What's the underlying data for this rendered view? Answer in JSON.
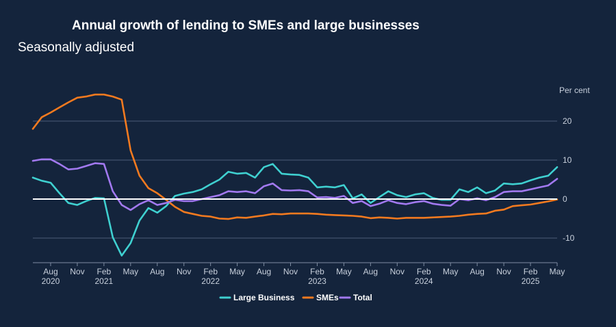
{
  "chart_data": {
    "type": "line",
    "title": "Annual growth of lending to SMEs and large businesses",
    "subtitle": "Seasonally adjusted",
    "ylabel": "Per cent",
    "xlabel": "",
    "ylim": [
      -16,
      27
    ],
    "yticks": [
      20,
      10,
      0,
      -10
    ],
    "grid": true,
    "legend_position": "bottom-center",
    "x_start": "2020-06",
    "x_end": "2025-05",
    "x_ticks": [
      {
        "month": "Aug",
        "year": "2020",
        "index": 2
      },
      {
        "month": "Nov",
        "year": "",
        "index": 5
      },
      {
        "month": "Feb",
        "year": "2021",
        "index": 8
      },
      {
        "month": "May",
        "year": "",
        "index": 11
      },
      {
        "month": "Aug",
        "year": "",
        "index": 14
      },
      {
        "month": "Nov",
        "year": "",
        "index": 17
      },
      {
        "month": "Feb",
        "year": "2022",
        "index": 20
      },
      {
        "month": "May",
        "year": "",
        "index": 23
      },
      {
        "month": "Aug",
        "year": "",
        "index": 26
      },
      {
        "month": "Nov",
        "year": "",
        "index": 29
      },
      {
        "month": "Feb",
        "year": "2023",
        "index": 32
      },
      {
        "month": "May",
        "year": "",
        "index": 35
      },
      {
        "month": "Aug",
        "year": "",
        "index": 38
      },
      {
        "month": "Nov",
        "year": "",
        "index": 41
      },
      {
        "month": "Feb",
        "year": "2024",
        "index": 44
      },
      {
        "month": "May",
        "year": "",
        "index": 47
      },
      {
        "month": "Aug",
        "year": "",
        "index": 50
      },
      {
        "month": "Nov",
        "year": "",
        "index": 53
      },
      {
        "month": "Feb",
        "year": "2025",
        "index": 56
      },
      {
        "month": "May",
        "year": "",
        "index": 59
      }
    ],
    "series": [
      {
        "name": "Large Business",
        "color": "#3fd0d0",
        "values": [
          5.5,
          4.7,
          4.2,
          1.5,
          -1.0,
          -1.5,
          -0.5,
          0.3,
          0.2,
          -9.8,
          -14.5,
          -11.3,
          -5.5,
          -2.3,
          -3.5,
          -1.8,
          0.8,
          1.4,
          1.8,
          2.5,
          3.8,
          5.0,
          7.0,
          6.5,
          6.7,
          5.5,
          8.2,
          9.0,
          6.5,
          6.3,
          6.2,
          5.5,
          3.0,
          3.2,
          3.0,
          3.6,
          0.2,
          1.2,
          -1.0,
          0.5,
          2.0,
          1.0,
          0.5,
          1.2,
          1.5,
          0.3,
          -0.2,
          -0.2,
          2.5,
          1.8,
          3.0,
          1.5,
          2.2,
          4.0,
          3.8,
          4.0,
          4.8,
          5.5,
          6.0,
          8.2
        ]
      },
      {
        "name": "SMEs",
        "color": "#f47a1f",
        "values": [
          18.0,
          21.0,
          22.2,
          23.5,
          24.8,
          26.0,
          26.3,
          26.8,
          26.8,
          26.3,
          25.5,
          12.5,
          6.0,
          2.8,
          1.5,
          -0.2,
          -2.0,
          -3.3,
          -3.8,
          -4.3,
          -4.5,
          -5.0,
          -5.1,
          -4.7,
          -4.8,
          -4.5,
          -4.2,
          -3.8,
          -3.9,
          -3.7,
          -3.7,
          -3.7,
          -3.8,
          -4.0,
          -4.1,
          -4.2,
          -4.3,
          -4.5,
          -4.9,
          -4.7,
          -4.8,
          -5.0,
          -4.8,
          -4.8,
          -4.8,
          -4.7,
          -4.6,
          -4.5,
          -4.3,
          -4.0,
          -3.8,
          -3.7,
          -3.0,
          -2.7,
          -1.8,
          -1.6,
          -1.4,
          -1.0,
          -0.6,
          -0.1
        ]
      },
      {
        "name": "Total",
        "color": "#a279f0",
        "values": [
          9.8,
          10.2,
          10.2,
          9.0,
          7.6,
          7.8,
          8.5,
          9.2,
          9.0,
          2.0,
          -1.5,
          -2.8,
          -1.3,
          -0.3,
          -1.5,
          -1.0,
          -0.2,
          -0.5,
          -0.5,
          0.0,
          0.5,
          1.0,
          2.0,
          1.8,
          2.0,
          1.5,
          3.3,
          4.0,
          2.3,
          2.2,
          2.3,
          2.0,
          0.4,
          0.5,
          0.3,
          0.8,
          -1.0,
          -0.5,
          -1.8,
          -1.2,
          -0.3,
          -1.0,
          -1.3,
          -0.8,
          -0.5,
          -1.2,
          -1.5,
          -1.7,
          0.0,
          -0.3,
          0.2,
          -0.3,
          0.5,
          1.8,
          2.0,
          2.0,
          2.5,
          3.0,
          3.5,
          5.2
        ]
      }
    ]
  }
}
